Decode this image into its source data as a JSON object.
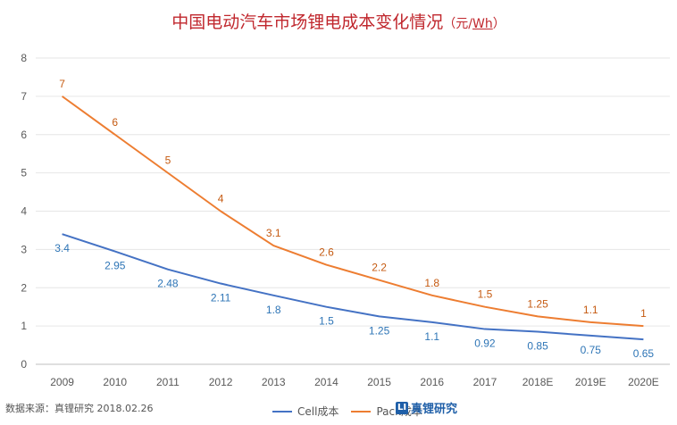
{
  "title": "中国电动汽车市场锂电成本变化情况",
  "title_unit": "（元/Wh）",
  "title_unit_parts": {
    "open": "（元/",
    "wh": "Wh",
    "close": "）"
  },
  "chart_data": {
    "type": "line",
    "categories": [
      "2009",
      "2010",
      "2011",
      "2012",
      "2013",
      "2014",
      "2015",
      "2016",
      "2017",
      "2018E",
      "2019E",
      "2020E"
    ],
    "series": [
      {
        "name": "Cell成本",
        "color": "#4472c4",
        "label_color": "#2e75b6",
        "values": [
          3.4,
          2.95,
          2.48,
          2.11,
          1.8,
          1.5,
          1.25,
          1.1,
          0.92,
          0.85,
          0.75,
          0.65
        ]
      },
      {
        "name": "Pack成本",
        "color": "#ed7d31",
        "label_color": "#c55a11",
        "values": [
          7,
          6,
          5,
          4,
          3.1,
          2.6,
          2.2,
          1.8,
          1.5,
          1.25,
          1.1,
          1
        ]
      }
    ],
    "ylim": [
      0,
      8
    ],
    "yticks": [
      0,
      1,
      2,
      3,
      4,
      5,
      6,
      7,
      8
    ],
    "grid": true,
    "legend_position": "bottom"
  },
  "footer": {
    "source": "数据来源：真锂研究   2018.02.26",
    "logo_text": "真锂研究",
    "logo_mark": "LI"
  }
}
